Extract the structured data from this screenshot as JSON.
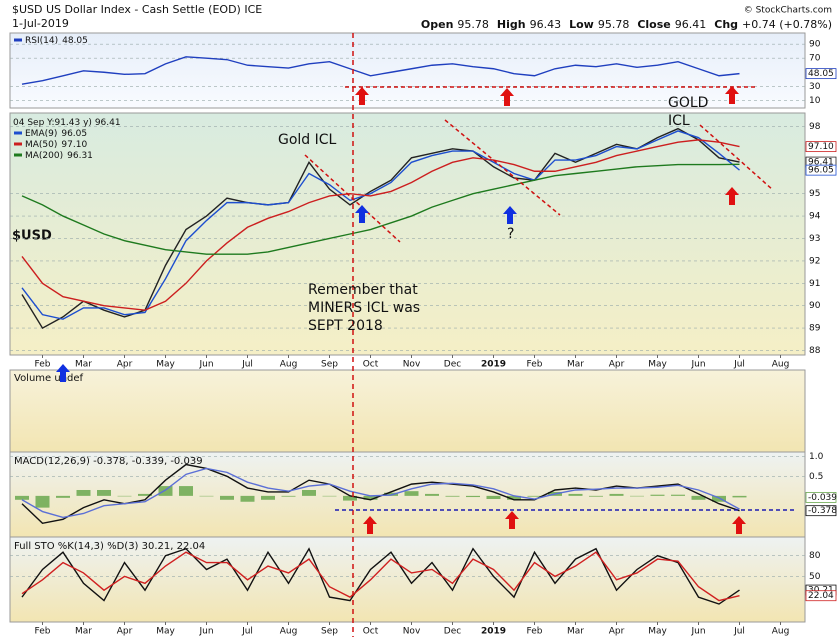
{
  "header": {
    "title": "$USD US Dollar Index - Cash Settle (EOD) ICE",
    "date": "1-Jul-2019",
    "source": "© StockCharts.com",
    "quote": [
      {
        "label": "Open",
        "value": 95.78
      },
      {
        "label": "High",
        "value": 96.43
      },
      {
        "label": "Low",
        "value": 95.78
      },
      {
        "label": "Close",
        "value": 96.41
      },
      {
        "label": "Chg",
        "value": "+0.74 (+0.78%)"
      }
    ]
  },
  "annotations": [
    {
      "text": "Gold ICL",
      "color": "#9933cc"
    },
    {
      "text": "GOLD",
      "color": "#9933cc"
    },
    {
      "text": "ICL",
      "color": "#9933cc"
    },
    {
      "text": "?",
      "color": "#1a1a80"
    },
    {
      "text": "Remember that",
      "color": "#d01010"
    },
    {
      "text": "MINERS ICL was",
      "color": "#d01010"
    },
    {
      "text": "SEPT 2018",
      "color": "#d01010"
    }
  ],
  "chart_data": [
    {
      "type": "line",
      "ylim": [
        -1,
        106
      ],
      "yticks": [
        10,
        30,
        70,
        90
      ],
      "grid": true,
      "series": [
        {
          "name": "RSI(14)",
          "color": "#1f3fbf",
          "legend": true,
          "tag": true,
          "values": [
            33,
            38,
            45,
            52,
            50,
            47,
            48,
            62,
            72,
            70,
            68,
            60,
            58,
            56,
            62,
            65,
            55,
            45,
            50,
            55,
            60,
            62,
            58,
            55,
            48,
            45,
            55,
            60,
            58,
            62,
            57,
            60,
            65,
            55,
            45,
            48.05,
            null,
            null
          ]
        }
      ]
    },
    {
      "type": "line",
      "ylim": [
        87.8,
        98.6
      ],
      "yticks": [
        88,
        89,
        90,
        91,
        92,
        93,
        94,
        95,
        98
      ],
      "grid": true,
      "crosshair": "04 Sep Y:91.43 y)",
      "categories": [
        null,
        "Feb",
        null,
        "Mar",
        null,
        "Apr",
        null,
        "May",
        null,
        "Jun",
        null,
        "Jul",
        null,
        "Aug",
        null,
        "Sep",
        null,
        "Oct",
        null,
        "Nov",
        null,
        "Dec",
        null,
        "2019",
        null,
        "Feb",
        null,
        "Mar",
        null,
        "Apr",
        null,
        "May",
        null,
        "Jun",
        null,
        "Jul",
        null,
        "Aug"
      ],
      "series": [
        {
          "name": "$USD",
          "color": "#222222",
          "tag": true,
          "values": [
            90.5,
            89.0,
            89.5,
            90.2,
            89.8,
            89.5,
            89.8,
            91.8,
            93.4,
            94.0,
            94.8,
            94.6,
            94.5,
            94.6,
            96.4,
            95.2,
            94.5,
            95.1,
            95.6,
            96.6,
            96.8,
            97.0,
            96.9,
            96.2,
            95.7,
            95.6,
            96.8,
            96.4,
            96.8,
            97.2,
            97.0,
            97.5,
            97.9,
            97.4,
            96.6,
            96.41,
            null,
            null
          ]
        },
        {
          "name": "EMA(9)",
          "color": "#1d4ecf",
          "legend": true,
          "tag": true,
          "values": [
            90.8,
            89.6,
            89.4,
            89.9,
            89.9,
            89.6,
            89.7,
            91.2,
            92.9,
            93.8,
            94.6,
            94.6,
            94.5,
            94.6,
            95.9,
            95.4,
            94.7,
            95.0,
            95.5,
            96.4,
            96.7,
            96.9,
            96.9,
            96.4,
            95.9,
            95.6,
            96.5,
            96.5,
            96.7,
            97.1,
            97.0,
            97.4,
            97.8,
            97.5,
            96.8,
            96.05,
            null,
            null
          ]
        },
        {
          "name": "MA(50)",
          "color": "#cc1f1f",
          "legend": true,
          "tag": true,
          "values": [
            92.2,
            91.0,
            90.4,
            90.2,
            90.0,
            89.9,
            89.8,
            90.2,
            91.0,
            92.0,
            92.8,
            93.5,
            93.9,
            94.2,
            94.6,
            94.9,
            95.0,
            94.9,
            95.1,
            95.5,
            96.0,
            96.4,
            96.6,
            96.5,
            96.3,
            96.0,
            96.0,
            96.2,
            96.4,
            96.7,
            96.9,
            97.1,
            97.3,
            97.4,
            97.3,
            97.1,
            null,
            null
          ],
          "value_labels": [
            null,
            null,
            null,
            null,
            null,
            null,
            null,
            null,
            null,
            null,
            null,
            null,
            null,
            null,
            null,
            null,
            null,
            null,
            null,
            null,
            null,
            null,
            null,
            null,
            null,
            null,
            null,
            null,
            null,
            null,
            null,
            null,
            null,
            null,
            null,
            "97.10",
            null,
            null
          ]
        },
        {
          "name": "MA(200)",
          "color": "#1e7a1e",
          "legend": true,
          "values": [
            94.9,
            94.5,
            94.0,
            93.6,
            93.2,
            92.9,
            92.7,
            92.5,
            92.4,
            92.3,
            92.3,
            92.3,
            92.4,
            92.6,
            92.8,
            93.0,
            93.2,
            93.4,
            93.7,
            94.0,
            94.4,
            94.7,
            95.0,
            95.2,
            95.4,
            95.6,
            95.8,
            95.9,
            96.0,
            96.1,
            96.2,
            96.25,
            96.3,
            96.3,
            96.3,
            96.31,
            null,
            null
          ]
        }
      ]
    },
    {
      "type": "volume",
      "title": "Volume undef"
    },
    {
      "type": "line",
      "title": "MACD(12,26,9) -0.378, -0.339, -0.039",
      "ylim": [
        -1.05,
        1.12
      ],
      "yticks": [
        {
          "value": 1,
          "label": "1.0"
        },
        0.5
      ],
      "grid": true,
      "series": [
        {
          "type": "bar",
          "color": "#6aa84f",
          "tag": true,
          "values": [
            -0.1,
            -0.3,
            -0.05,
            0.15,
            0.15,
            0,
            0.05,
            0.25,
            0.25,
            0,
            -0.1,
            -0.15,
            -0.1,
            -0.02,
            0.15,
            0,
            -0.12,
            -0.1,
            0.08,
            0.12,
            0.05,
            -0.02,
            -0.03,
            -0.08,
            -0.1,
            -0.02,
            0.1,
            0.05,
            -0.02,
            0.05,
            0,
            0.03,
            0.03,
            -0.1,
            -0.15,
            -0.039,
            null,
            null
          ]
        },
        {
          "color": "#111111",
          "tag": true,
          "values": [
            -0.2,
            -0.7,
            -0.6,
            -0.3,
            -0.1,
            -0.2,
            -0.1,
            0.4,
            0.8,
            0.7,
            0.5,
            0.2,
            0.1,
            0.1,
            0.4,
            0.3,
            0,
            -0.1,
            0.1,
            0.3,
            0.35,
            0.3,
            0.25,
            0.1,
            -0.1,
            -0.1,
            0.15,
            0.2,
            0.15,
            0.25,
            0.2,
            0.25,
            0.3,
            0.05,
            -0.2,
            -0.378,
            null,
            null
          ]
        },
        {
          "color": "#5b6fd6",
          "values": [
            -0.1,
            -0.4,
            -0.55,
            -0.45,
            -0.25,
            -0.2,
            -0.15,
            0.15,
            0.55,
            0.7,
            0.6,
            0.35,
            0.2,
            0.12,
            0.25,
            0.3,
            0.12,
            0,
            0.02,
            0.18,
            0.3,
            0.32,
            0.28,
            0.18,
            0,
            -0.08,
            0.05,
            0.15,
            0.17,
            0.2,
            0.2,
            0.22,
            0.27,
            0.15,
            -0.05,
            -0.339,
            null,
            null
          ]
        }
      ]
    },
    {
      "type": "line",
      "title": "Full STO %K(14,3) %D(3) 30.21, 22.04",
      "ylim": [
        -16,
        107
      ],
      "yticks": [
        50,
        80
      ],
      "grid": true,
      "categories": [
        null,
        "Feb",
        null,
        "Mar",
        null,
        "Apr",
        null,
        "May",
        null,
        "Jun",
        null,
        "Jul",
        null,
        "Aug",
        null,
        "Sep",
        null,
        "Oct",
        null,
        "Nov",
        null,
        "Dec",
        null,
        "2019",
        null,
        "Feb",
        null,
        "Mar",
        null,
        "Apr",
        null,
        "May",
        null,
        "Jun",
        null,
        "Jul",
        null,
        "Aug"
      ],
      "series": [
        {
          "color": "#111111",
          "tag": true,
          "values": [
            20,
            60,
            85,
            40,
            15,
            70,
            30,
            80,
            90,
            60,
            75,
            30,
            85,
            40,
            90,
            20,
            15,
            60,
            85,
            40,
            70,
            30,
            90,
            50,
            20,
            85,
            40,
            75,
            90,
            30,
            60,
            80,
            70,
            20,
            10,
            30.21,
            null,
            null
          ]
        },
        {
          "color": "#d02020",
          "tag": true,
          "values": [
            25,
            45,
            70,
            55,
            30,
            50,
            40,
            65,
            85,
            70,
            70,
            45,
            65,
            55,
            75,
            35,
            20,
            45,
            75,
            55,
            60,
            40,
            75,
            60,
            30,
            70,
            50,
            65,
            85,
            45,
            55,
            75,
            72,
            35,
            15,
            22.04,
            null,
            null
          ]
        }
      ]
    }
  ]
}
